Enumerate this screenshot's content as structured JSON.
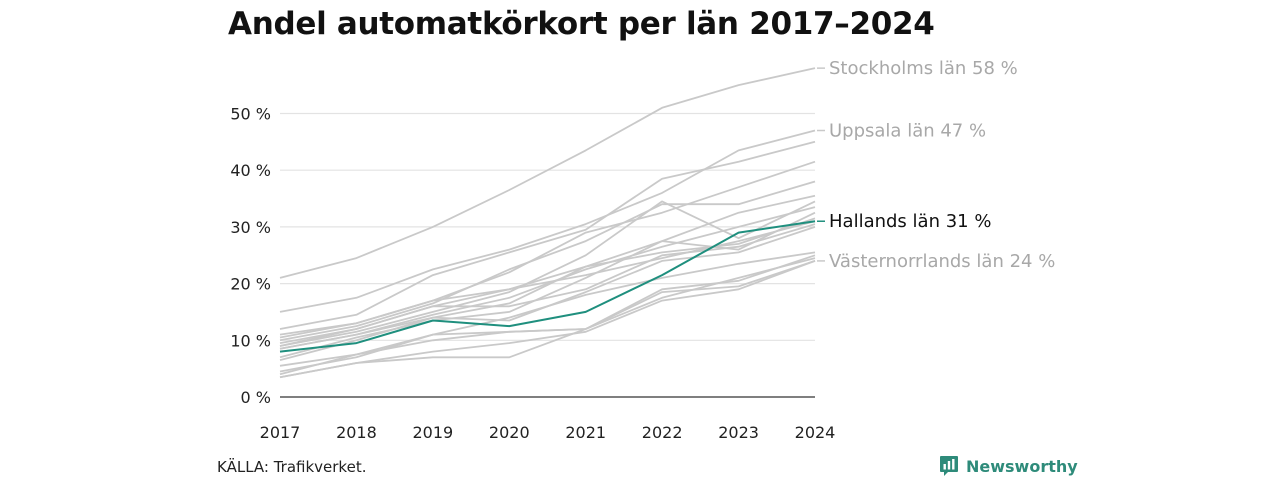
{
  "title": "Andel automatkörkort per län 2017–2024",
  "source": "KÄLLA: Trafikverket.",
  "brand": "Newsworthy",
  "colors": {
    "background_line": "#c9c9c9",
    "highlight": "#1f8f7e",
    "gridline": "#e3e3e3",
    "axis": "#333333",
    "muted_label": "#a8a8a8",
    "highlight_label": "#111111"
  },
  "chart_data": {
    "type": "line",
    "x": [
      2017,
      2018,
      2019,
      2020,
      2021,
      2022,
      2023,
      2024
    ],
    "xticks": [
      "2017",
      "2018",
      "2019",
      "2020",
      "2021",
      "2022",
      "2023",
      "2024"
    ],
    "yticks": [
      {
        "value": 0,
        "label": "0 %"
      },
      {
        "value": 10,
        "label": "10 %"
      },
      {
        "value": 20,
        "label": "20 %"
      },
      {
        "value": 30,
        "label": "30 %"
      },
      {
        "value": 40,
        "label": "40 %"
      },
      {
        "value": 50,
        "label": "50 %"
      }
    ],
    "ylim": [
      0,
      58
    ],
    "grid": true,
    "highlight_series": "Hallands län",
    "series": [
      {
        "name": "Stockholms län",
        "label": "Stockholms län 58 %",
        "labeled": true,
        "values": [
          21,
          24.5,
          30,
          36.5,
          43.5,
          51,
          55,
          58
        ]
      },
      {
        "name": "Uppsala län",
        "label": "Uppsala län 47 %",
        "labeled": true,
        "values": [
          15,
          17.5,
          22.5,
          26,
          30.5,
          36,
          43.5,
          47
        ]
      },
      {
        "name": "Hallands län",
        "label": "Hallands län 31 %",
        "labeled": true,
        "highlight": true,
        "values": [
          8,
          9.5,
          13.5,
          12.5,
          15,
          21.5,
          29,
          31
        ]
      },
      {
        "name": "Västernorrlands län",
        "label": "Västernorrlands län 24 %",
        "labeled": true,
        "values": [
          5.5,
          7.5,
          11,
          11.5,
          12,
          18.5,
          19.5,
          24
        ]
      },
      {
        "values": [
          12,
          14.5,
          21.5,
          25.5,
          29.5,
          38.5,
          41.5,
          45
        ]
      },
      {
        "values": [
          11,
          13,
          17,
          22,
          29,
          32.5,
          37,
          41.5
        ]
      },
      {
        "values": [
          10,
          12.5,
          16.5,
          22.5,
          27.5,
          34,
          34,
          38
        ]
      },
      {
        "values": [
          9.5,
          12,
          16,
          19,
          23,
          27.5,
          32.5,
          35.5
        ]
      },
      {
        "values": [
          9,
          11.5,
          15,
          18.5,
          25,
          34.5,
          28,
          34.5
        ]
      },
      {
        "values": [
          8.5,
          11,
          14.5,
          17.5,
          22.5,
          26.5,
          30,
          33.5
        ]
      },
      {
        "values": [
          7,
          10.5,
          13.5,
          15,
          21,
          27.5,
          26,
          32.5
        ]
      },
      {
        "values": [
          6.5,
          10,
          14,
          16.5,
          23,
          25.5,
          27,
          31.5
        ]
      },
      {
        "values": [
          10.5,
          13,
          17,
          19,
          21.5,
          24.5,
          27.5,
          31
        ]
      },
      {
        "values": [
          9,
          12,
          16,
          16,
          19,
          25,
          26.5,
          30.5
        ]
      },
      {
        "values": [
          8.5,
          11,
          14,
          13.5,
          18.5,
          24,
          25.5,
          30
        ]
      },
      {
        "values": [
          4.5,
          7,
          11,
          14,
          18,
          21,
          23.5,
          25.5
        ]
      },
      {
        "values": [
          4,
          7.5,
          10,
          11.5,
          12,
          19,
          20.5,
          25
        ]
      },
      {
        "values": [
          3.5,
          6,
          7,
          7,
          12,
          17.5,
          21,
          24.5
        ]
      },
      {
        "values": [
          3.5,
          6,
          8,
          9.5,
          11.5,
          17,
          19,
          24
        ]
      }
    ]
  }
}
